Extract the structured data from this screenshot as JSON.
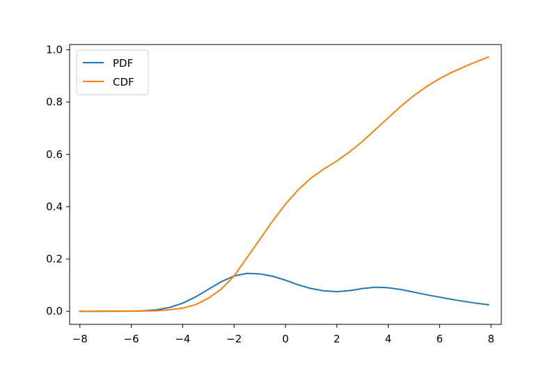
{
  "chart_data": {
    "type": "line",
    "title": "",
    "xlabel": "",
    "ylabel": "",
    "xlim": [
      -8.4,
      8.4
    ],
    "ylim": [
      -0.05,
      1.02
    ],
    "xticks": [
      -8,
      -6,
      -4,
      -2,
      0,
      2,
      4,
      6,
      8
    ],
    "xtick_labels": [
      "−8",
      "−6",
      "−4",
      "−2",
      "0",
      "2",
      "4",
      "6",
      "8"
    ],
    "yticks": [
      0.0,
      0.2,
      0.4,
      0.6,
      0.8,
      1.0
    ],
    "ytick_labels": [
      "0.0",
      "0.2",
      "0.4",
      "0.6",
      "0.8",
      "1.0"
    ],
    "grid": false,
    "legend": "upper-left",
    "series": [
      {
        "name": "PDF",
        "color": "#1f77b4",
        "x": [
          -8,
          -7,
          -6,
          -5.5,
          -5,
          -4.5,
          -4,
          -3.5,
          -3,
          -2.5,
          -2,
          -1.5,
          -1,
          -0.5,
          0,
          0.5,
          1,
          1.5,
          2,
          2.5,
          3,
          3.5,
          4,
          4.5,
          5,
          5.5,
          6,
          6.5,
          7,
          7.5,
          7.9
        ],
        "values": [
          0.0,
          0.0001,
          0.0005,
          0.002,
          0.006,
          0.015,
          0.031,
          0.055,
          0.084,
          0.113,
          0.135,
          0.145,
          0.143,
          0.134,
          0.119,
          0.101,
          0.087,
          0.078,
          0.075,
          0.079,
          0.087,
          0.092,
          0.09,
          0.083,
          0.073,
          0.063,
          0.054,
          0.045,
          0.037,
          0.03,
          0.025
        ]
      },
      {
        "name": "CDF",
        "color": "#ff7f0e",
        "x": [
          -8,
          -7,
          -6,
          -5.5,
          -5,
          -4.5,
          -4,
          -3.5,
          -3,
          -2.5,
          -2,
          -1.5,
          -1,
          -0.5,
          0,
          0.5,
          1,
          1.5,
          2,
          2.5,
          3,
          3.5,
          4,
          4.5,
          5,
          5.5,
          6,
          6.5,
          7,
          7.5,
          7.9
        ],
        "values": [
          0.0,
          0.0,
          0.0002,
          0.0008,
          0.002,
          0.006,
          0.012,
          0.025,
          0.05,
          0.085,
          0.135,
          0.205,
          0.275,
          0.345,
          0.41,
          0.465,
          0.51,
          0.545,
          0.575,
          0.61,
          0.65,
          0.695,
          0.74,
          0.785,
          0.825,
          0.86,
          0.89,
          0.915,
          0.937,
          0.957,
          0.972
        ]
      }
    ]
  }
}
